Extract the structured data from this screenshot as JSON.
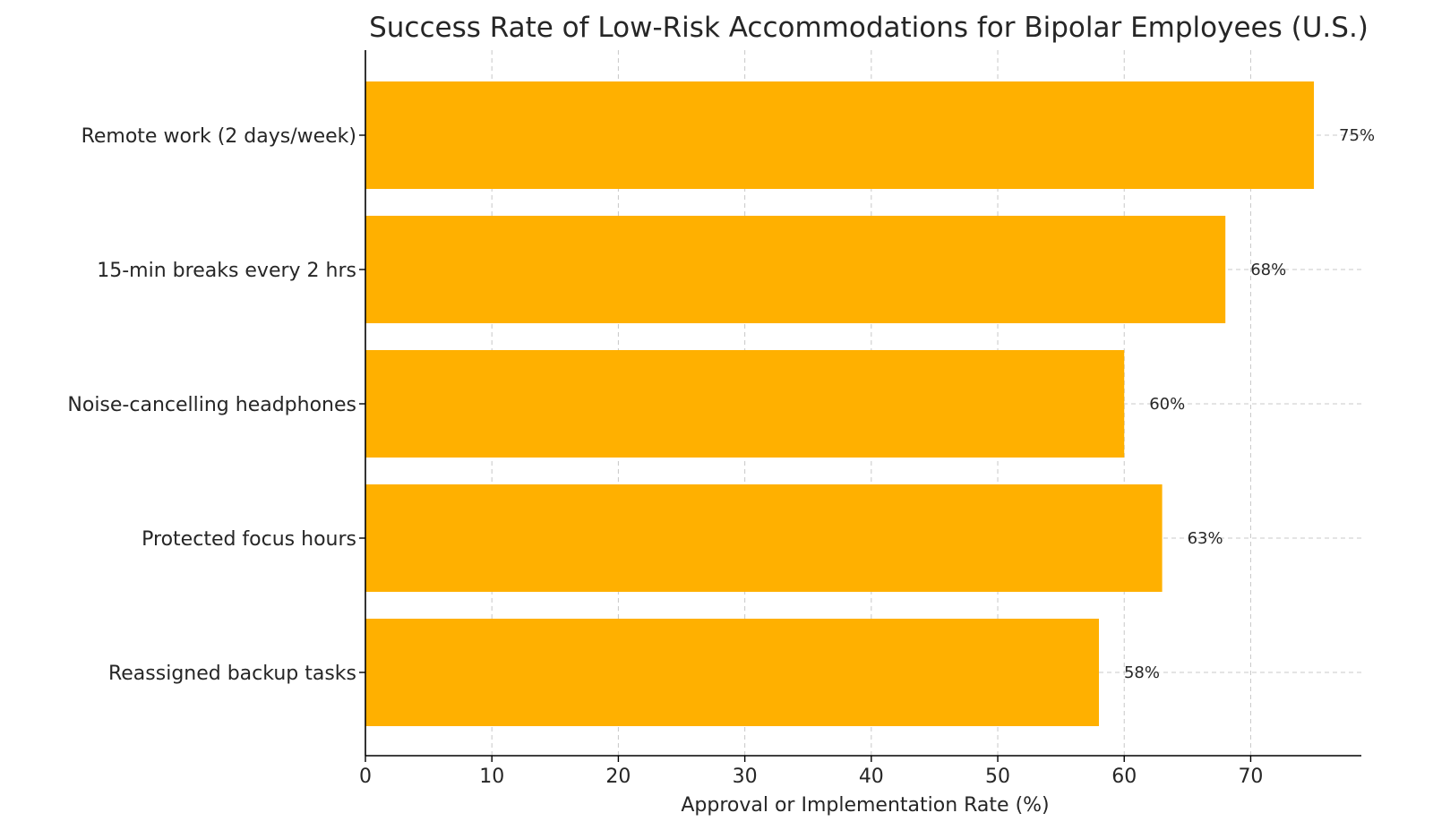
{
  "chart_data": {
    "type": "bar",
    "orientation": "horizontal",
    "title": "Success Rate of Low-Risk Accommodations for Bipolar Employees (U.S.)",
    "xlabel": "Approval or Implementation Rate (%)",
    "ylabel": "",
    "categories": [
      "Remote work (2 days/week)",
      "15-min breaks every 2 hrs",
      "Noise-cancelling headphones",
      "Protected focus hours",
      "Reassigned backup tasks"
    ],
    "values": [
      75,
      68,
      60,
      63,
      58
    ],
    "value_labels": [
      "75%",
      "68%",
      "60%",
      "63%",
      "58%"
    ],
    "xlim": [
      0,
      78.75
    ],
    "xticks": [
      0,
      10,
      20,
      30,
      40,
      50,
      60,
      70
    ],
    "xtick_labels": [
      "0",
      "10",
      "20",
      "30",
      "40",
      "50",
      "60",
      "70"
    ],
    "grid": true,
    "bar_color": "#FFB000"
  }
}
